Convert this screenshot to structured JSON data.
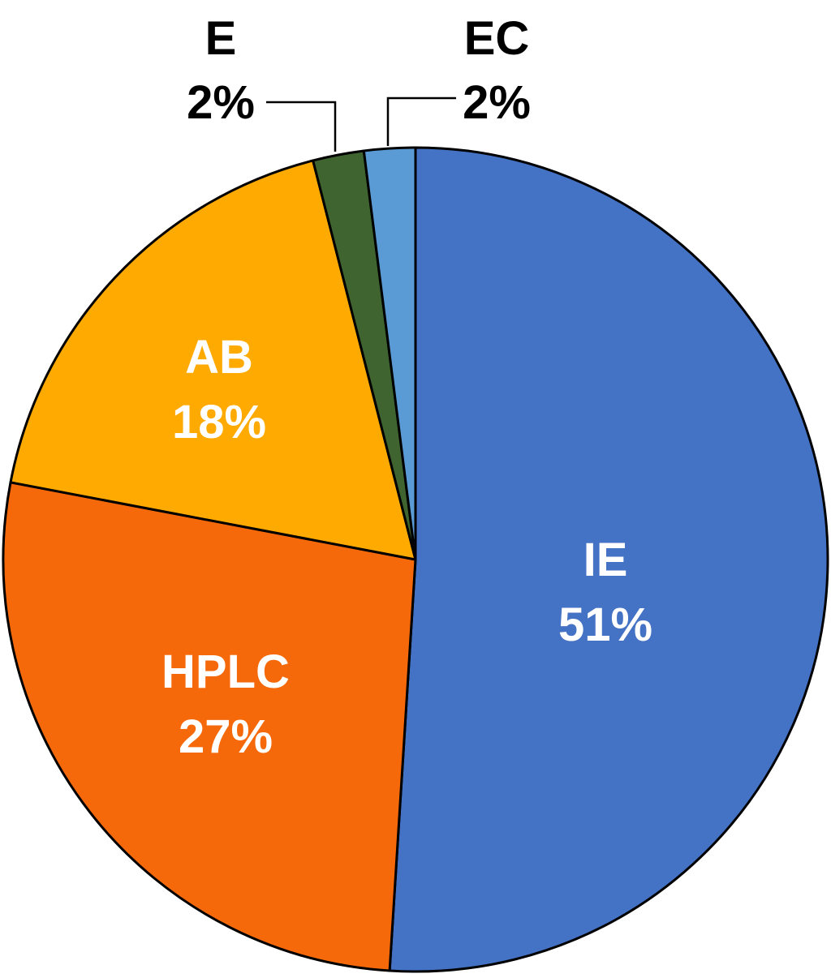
{
  "chart_data": {
    "type": "pie",
    "title": "",
    "slices": [
      {
        "name": "IE",
        "value": 51,
        "label": "IE",
        "value_label": "51%",
        "color": "#4472C4",
        "label_color": "#ffffff"
      },
      {
        "name": "HPLC",
        "value": 27,
        "label": "HPLC",
        "value_label": "27%",
        "color": "#F5690A",
        "label_color": "#ffffff"
      },
      {
        "name": "AB",
        "value": 18,
        "label": "AB",
        "value_label": "18%",
        "color": "#FFAA00",
        "label_color": "#ffffff"
      },
      {
        "name": "E",
        "value": 2,
        "label": "E",
        "value_label": "2%",
        "color": "#3F6430",
        "label_color": "#000000"
      },
      {
        "name": "EC",
        "value": 2,
        "label": "EC",
        "value_label": "2%",
        "color": "#5B9BD5",
        "label_color": "#000000"
      }
    ],
    "start": "12 o'clock",
    "direction": "clockwise",
    "legend": "none",
    "outline_color": "#000000"
  }
}
